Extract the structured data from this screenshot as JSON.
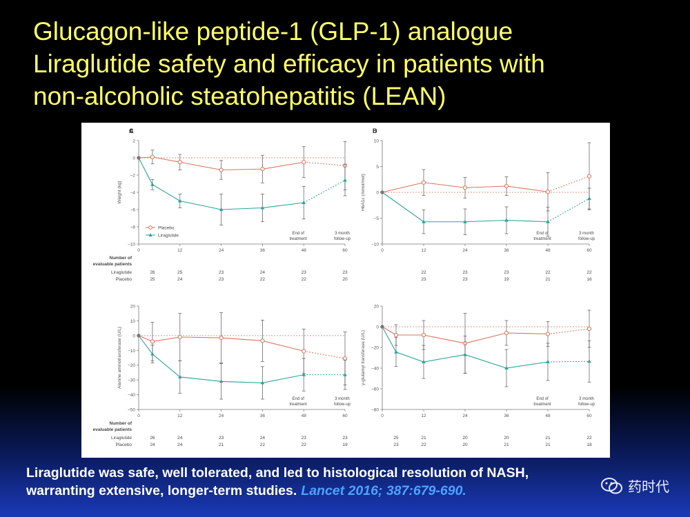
{
  "title_lines": [
    "Glucagon-like peptide-1 (GLP-1) analogue",
    "Liraglutide safety and efficacy in patients with",
    "non-alcoholic steatohepatitis (LEAN)"
  ],
  "conclusion": {
    "line1": "Liraglutide was safe, well tolerated, and led to histological resolution of NASH,",
    "line2": "warranting extensive, longer-term studies.",
    "citation": "Lancet 2016; 387:679-690."
  },
  "watermark": {
    "text": "药时代",
    "icon": "wechat-icon"
  },
  "colors": {
    "placebo": "#d9735a",
    "liraglutide": "#2aa39b",
    "title": "#ffff66",
    "citation": "#4da3ff"
  },
  "chart_data": [
    {
      "panel": "A",
      "type": "line",
      "ylabel": "Weight (kg)",
      "ylim": [
        -10,
        2
      ],
      "yticks": [
        2,
        0,
        -2,
        -4,
        -6,
        -8,
        -10
      ],
      "xlim": [
        0,
        60
      ],
      "xticks": [
        0,
        12,
        24,
        36,
        48,
        60
      ],
      "legend": {
        "position": "bottom-left",
        "entries": [
          "Placebo",
          "Liraglutide"
        ]
      },
      "annotations": {
        "end_of_treatment": [
          "End of",
          "treatment"
        ],
        "follow_up": [
          "3 month",
          "follow-up"
        ]
      },
      "series": [
        {
          "name": "Placebo",
          "x": [
            0,
            4,
            12,
            24,
            36,
            48,
            60
          ],
          "y": [
            0,
            0.1,
            -0.5,
            -1.4,
            -1.3,
            -0.5,
            -0.9
          ],
          "err": [
            0,
            0.8,
            0.9,
            1.1,
            1.6,
            1.8,
            2.8
          ]
        },
        {
          "name": "Liraglutide",
          "x": [
            0,
            4,
            12,
            24,
            36,
            48,
            60
          ],
          "y": [
            0,
            -3.1,
            -5.0,
            -6.0,
            -5.8,
            -5.2,
            -2.6
          ],
          "err": [
            0,
            0.6,
            0.8,
            1.8,
            1.6,
            1.9,
            1.8
          ]
        }
      ],
      "patients_header": [
        "Number of",
        "evaluable patients"
      ],
      "patients": [
        {
          "label": "Liraglutide",
          "x": [
            4,
            12,
            24,
            36,
            48,
            60
          ],
          "n": [
            "26",
            "25",
            "23",
            "24",
            "23",
            "23"
          ]
        },
        {
          "label": "Placebo",
          "x": [
            4,
            12,
            24,
            36,
            48,
            60
          ],
          "n": [
            "25",
            "24",
            "23",
            "22",
            "22",
            "20"
          ]
        }
      ]
    },
    {
      "panel": "B",
      "type": "line",
      "ylabel": "HbA1c (mmol/mol)",
      "ylim": [
        -10,
        10
      ],
      "yticks": [
        10,
        5,
        0,
        -5,
        -10
      ],
      "xlim": [
        0,
        60
      ],
      "xticks": [
        0,
        12,
        24,
        36,
        48,
        60
      ],
      "annotations": {
        "end_of_treatment": [
          "End of",
          "treatment"
        ],
        "follow_up": [
          "3 month",
          "follow-up"
        ]
      },
      "series": [
        {
          "name": "Placebo",
          "x": [
            0,
            12,
            24,
            36,
            48,
            60
          ],
          "y": [
            0,
            1.9,
            0.9,
            1.2,
            0.1,
            3.1
          ],
          "err": [
            0,
            2.5,
            2.0,
            1.8,
            3.7,
            6.5
          ]
        },
        {
          "name": "Liraglutide",
          "x": [
            0,
            12,
            24,
            36,
            48,
            60
          ],
          "y": [
            0,
            -5.7,
            -5.7,
            -5.4,
            -5.7,
            -1.2
          ],
          "err": [
            0,
            2.3,
            2.5,
            2.6,
            2.8,
            2.0
          ]
        }
      ],
      "patients": [
        {
          "label": "Liraglutide",
          "x": [
            12,
            24,
            36,
            48,
            60
          ],
          "n": [
            "22",
            "23",
            "23",
            "22",
            "22"
          ]
        },
        {
          "label": "Placebo",
          "x": [
            12,
            24,
            36,
            48,
            60
          ],
          "n": [
            "23",
            "23",
            "19",
            "21",
            "16"
          ]
        }
      ]
    },
    {
      "panel": "C",
      "type": "line",
      "ylabel": "Alanine aminotransferase (U/L)",
      "ylim": [
        -50,
        20
      ],
      "yticks": [
        20,
        10,
        0,
        -10,
        -20,
        -30,
        -40,
        -50
      ],
      "xlim": [
        0,
        60
      ],
      "xticks": [
        0,
        12,
        24,
        36,
        48,
        60
      ],
      "annotations": {
        "end_of_treatment": [
          "End of",
          "treatment"
        ],
        "follow_up": [
          "3 month",
          "follow-up"
        ]
      },
      "series": [
        {
          "name": "Placebo",
          "x": [
            0,
            4,
            12,
            24,
            36,
            48,
            60
          ],
          "y": [
            0,
            -4,
            -1,
            -1.5,
            -3.5,
            -10.5,
            -15.5
          ],
          "err": [
            0,
            13,
            16,
            17,
            14,
            15,
            18
          ]
        },
        {
          "name": "Liraglutide",
          "x": [
            0,
            4,
            12,
            24,
            36,
            48,
            60
          ],
          "y": [
            0,
            -12.5,
            -28,
            -31,
            -32,
            -26.5,
            -26.5
          ],
          "err": [
            0,
            6,
            11,
            12,
            11,
            11,
            10
          ]
        }
      ],
      "patients_header": [
        "Number of",
        "evaluable patients"
      ],
      "patients": [
        {
          "label": "Liraglutide",
          "x": [
            4,
            12,
            24,
            36,
            48,
            60
          ],
          "n": [
            "26",
            "24",
            "23",
            "24",
            "23",
            "23"
          ]
        },
        {
          "label": "Placebo",
          "x": [
            4,
            12,
            24,
            36,
            48,
            60
          ],
          "n": [
            "24",
            "24",
            "21",
            "22",
            "22",
            "19"
          ]
        }
      ]
    },
    {
      "panel": "D",
      "type": "line",
      "ylabel": "γ-glutamyl transferase (U/L)",
      "ylim": [
        -80,
        20
      ],
      "yticks": [
        20,
        0,
        -20,
        -40,
        -60,
        -80
      ],
      "xlim": [
        0,
        60
      ],
      "xticks": [
        0,
        12,
        24,
        36,
        48,
        60
      ],
      "annotations": {
        "end_of_treatment": [
          "End of",
          "treatment"
        ],
        "follow_up": [
          "3 month",
          "follow-up"
        ]
      },
      "series": [
        {
          "name": "Placebo",
          "x": [
            0,
            4,
            12,
            24,
            36,
            48,
            60
          ],
          "y": [
            0,
            -8,
            -8,
            -16,
            -6,
            -7,
            -2
          ],
          "err": [
            0,
            10,
            14,
            29,
            12,
            12,
            18
          ]
        },
        {
          "name": "Liraglutide",
          "x": [
            0,
            4,
            12,
            24,
            36,
            48,
            60
          ],
          "y": [
            0,
            -24.5,
            -34,
            -27,
            -40,
            -34,
            -33.5
          ],
          "err": [
            0,
            14,
            16,
            18,
            18,
            18,
            20
          ]
        }
      ],
      "patients": [
        {
          "label": "Liraglutide",
          "x": [
            4,
            12,
            24,
            36,
            48,
            60
          ],
          "n": [
            "25",
            "21",
            "20",
            "20",
            "21",
            "22"
          ]
        },
        {
          "label": "Placebo",
          "x": [
            4,
            12,
            24,
            36,
            48,
            60
          ],
          "n": [
            "23",
            "22",
            "20",
            "21",
            "21",
            "18"
          ]
        }
      ]
    }
  ]
}
